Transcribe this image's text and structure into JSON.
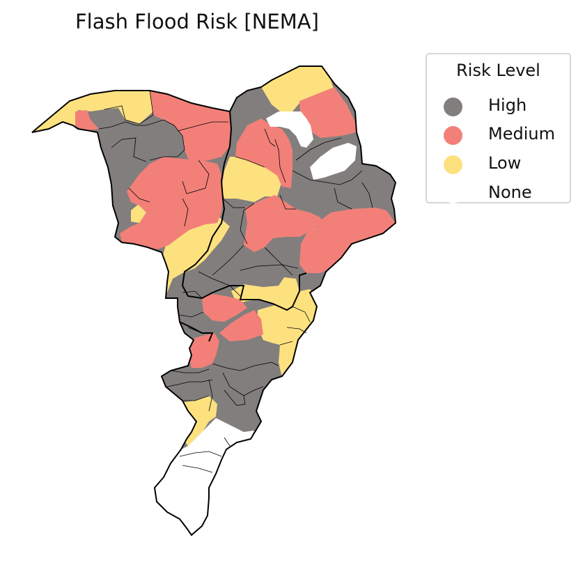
{
  "title": "Flash Flood Risk [NEMA]",
  "legend": {
    "title": "Risk Level",
    "items": [
      {
        "label": "High",
        "color": "#827e7e"
      },
      {
        "label": "Medium",
        "color": "#f28079"
      },
      {
        "label": "Low",
        "color": "#fde17f"
      },
      {
        "label": "None",
        "color": "#ffffff"
      }
    ]
  },
  "colors": {
    "high": "#827e7e",
    "medium": "#f28079",
    "low": "#fde17f",
    "none": "#ffffff",
    "boundary": "#000000"
  }
}
